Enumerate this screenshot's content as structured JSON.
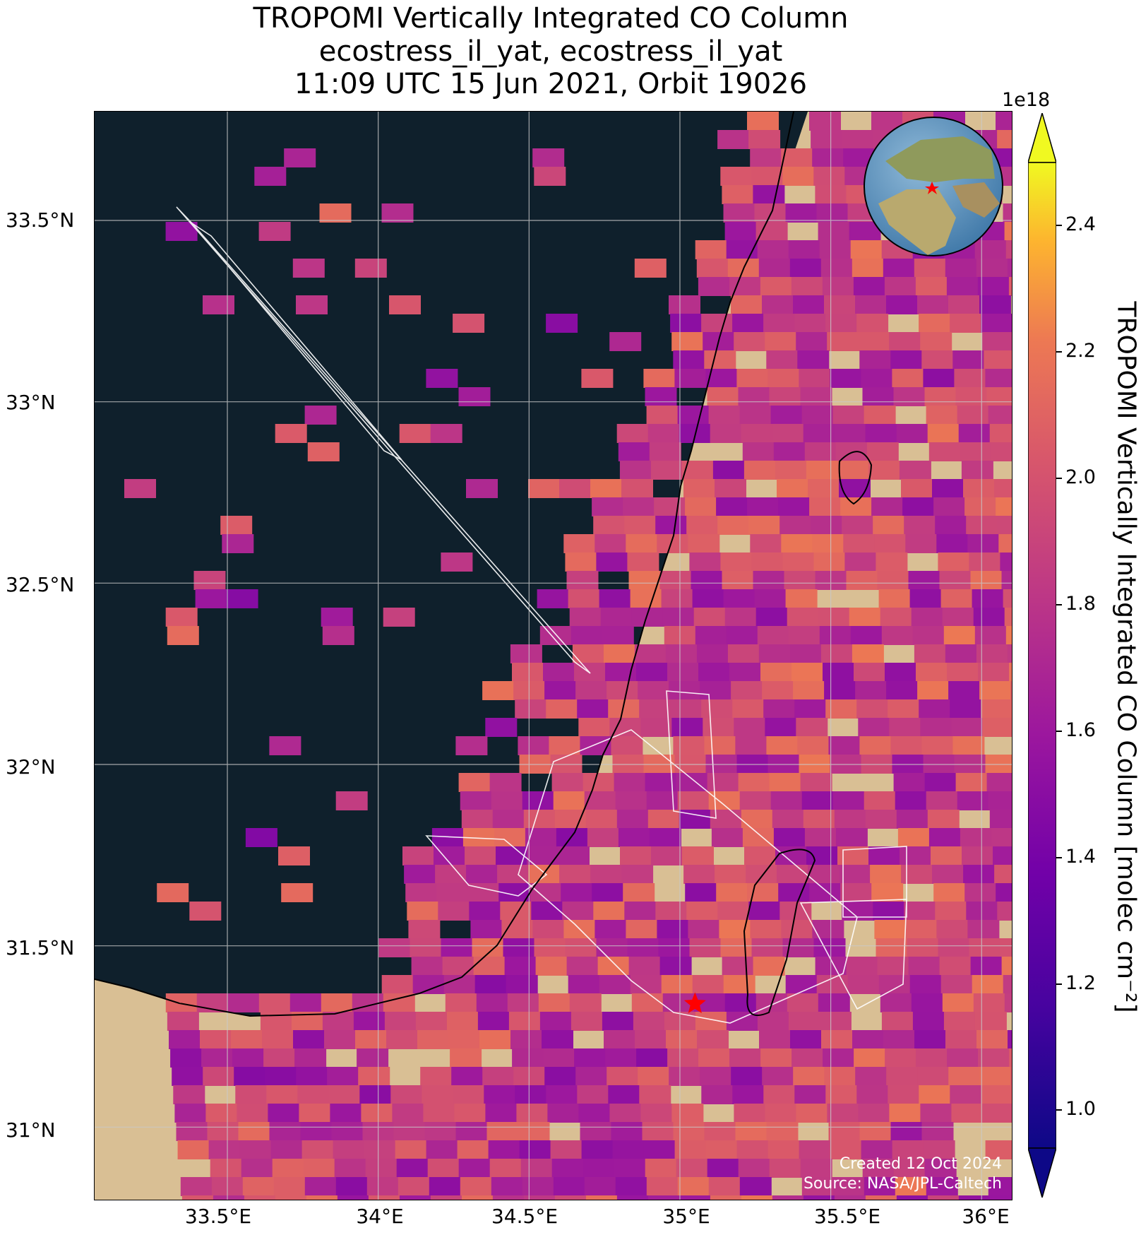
{
  "title": {
    "line1": "TROPOMI Vertically Integrated CO Column",
    "line2": "ecostress_il_yat, ecostress_il_yat",
    "line3": "11:09 UTC 15 Jun 2021, Orbit 19026"
  },
  "map": {
    "lat_ticks": [
      "33.5°N",
      "33°N",
      "32.5°N",
      "32°N",
      "31.5°N",
      "31°N"
    ],
    "lon_ticks": [
      "33.5°E",
      "34°E",
      "34.5°E",
      "35°E",
      "35.5°E",
      "36°E"
    ],
    "extent": {
      "lon_min": 33.06,
      "lon_max": 36.1,
      "lat_min": 30.8,
      "lat_max": 33.8
    },
    "target_marker": {
      "lon": 35.05,
      "lat": 31.34,
      "symbol": "star",
      "color": "#ff0000"
    },
    "inset_globe": {
      "marker_color": "#ff0000"
    },
    "colors": {
      "sea": "#0f202c",
      "land": "#d9bf94",
      "target": "#ff0000"
    },
    "credit_line1": "Created 12 Oct 2024",
    "credit_line2": "Source: NASA/JPL-Caltech"
  },
  "colorbar": {
    "exponent": "1e18",
    "label": "TROPOMI Vertically Integrated CO Column [molec cm⁻²]",
    "ticks": [
      "1.0",
      "1.2",
      "1.4",
      "1.6",
      "1.8",
      "2.0",
      "2.2",
      "2.4"
    ],
    "vmin": 0.94,
    "vmax": 2.5,
    "colormap": "plasma",
    "extend": "both"
  }
}
